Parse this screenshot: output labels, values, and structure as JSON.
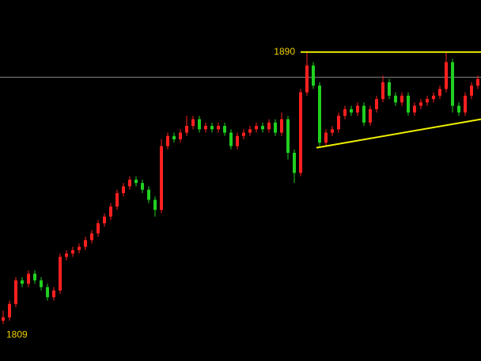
{
  "chart_data": {
    "type": "candlestick",
    "xlim": [
      -0.5,
      75.5
    ],
    "ylim": [
      1798,
      1905.5
    ],
    "up_color": "#ff2020",
    "down_color": "#20d020",
    "open": [
      1810,
      1811,
      1815,
      1822,
      1821,
      1824,
      1822,
      1820,
      1817,
      1819,
      1829,
      1830,
      1831,
      1832,
      1834,
      1836,
      1839,
      1841,
      1844,
      1848,
      1850,
      1852,
      1851,
      1849,
      1846,
      1843,
      1862,
      1865,
      1864,
      1866,
      1868,
      1870,
      1867,
      1868,
      1867,
      1868,
      1866,
      1862,
      1865,
      1866,
      1867,
      1868,
      1867,
      1869,
      1866,
      1870,
      1860,
      1854,
      1878,
      1886,
      1880,
      1863,
      1866,
      1867,
      1871,
      1873,
      1872,
      1874,
      1869,
      1873,
      1876,
      1881,
      1877,
      1875,
      1877,
      1872,
      1874,
      1875,
      1876,
      1877,
      1879,
      1887,
      1874,
      1872,
      1877,
      1880
    ],
    "high": [
      1813,
      1816,
      1823,
      1823,
      1825,
      1825,
      1823,
      1821,
      1820,
      1830,
      1831,
      1832,
      1833,
      1835,
      1837,
      1840,
      1842,
      1845,
      1849,
      1851,
      1853,
      1853,
      1852,
      1850,
      1847,
      1864,
      1866,
      1866,
      1867,
      1871,
      1871,
      1871,
      1869,
      1869,
      1869,
      1869,
      1867,
      1866,
      1867,
      1868,
      1869,
      1869,
      1870,
      1870,
      1872,
      1871,
      1861,
      1879,
      1890,
      1887,
      1881,
      1867,
      1868,
      1872,
      1874,
      1874,
      1875,
      1875,
      1874,
      1877,
      1883,
      1882,
      1878,
      1878,
      1878,
      1875,
      1876,
      1877,
      1878,
      1880,
      1890,
      1888,
      1875,
      1878,
      1881,
      1883
    ],
    "low": [
      1809,
      1810,
      1814,
      1820,
      1820,
      1821,
      1819,
      1816,
      1816,
      1818,
      1828,
      1829,
      1830,
      1831,
      1833,
      1835,
      1838,
      1840,
      1843,
      1847,
      1849,
      1850,
      1848,
      1845,
      1841,
      1842,
      1861,
      1863,
      1863,
      1865,
      1867,
      1866,
      1866,
      1866,
      1866,
      1865,
      1861,
      1861,
      1864,
      1865,
      1866,
      1866,
      1866,
      1865,
      1865,
      1858,
      1851,
      1853,
      1877,
      1879,
      1862,
      1862,
      1865,
      1866,
      1870,
      1871,
      1871,
      1868,
      1868,
      1872,
      1875,
      1876,
      1874,
      1874,
      1871,
      1871,
      1873,
      1874,
      1875,
      1876,
      1878,
      1872,
      1871,
      1871,
      1876,
      1879
    ],
    "close": [
      1811,
      1815,
      1822,
      1821,
      1824,
      1822,
      1820,
      1817,
      1819,
      1829,
      1830,
      1831,
      1832,
      1834,
      1836,
      1839,
      1841,
      1844,
      1848,
      1850,
      1852,
      1851,
      1849,
      1846,
      1843,
      1862,
      1865,
      1864,
      1866,
      1868,
      1870,
      1867,
      1868,
      1867,
      1868,
      1866,
      1862,
      1865,
      1866,
      1867,
      1868,
      1867,
      1869,
      1866,
      1870,
      1860,
      1854,
      1878,
      1886,
      1880,
      1863,
      1866,
      1867,
      1871,
      1873,
      1872,
      1874,
      1869,
      1873,
      1876,
      1881,
      1877,
      1875,
      1877,
      1872,
      1874,
      1875,
      1876,
      1877,
      1879,
      1887,
      1874,
      1872,
      1877,
      1880,
      1882
    ],
    "reference_line": {
      "value": 1882.5,
      "color": "#8a8a8a"
    },
    "trendlines": [
      {
        "x": [
          47,
          75.5
        ],
        "y": [
          1890,
          1890
        ],
        "color": "#f0f000"
      },
      {
        "x": [
          49.5,
          75.5
        ],
        "y": [
          1861.5,
          1870
        ],
        "color": "#f0f000"
      }
    ],
    "annotations": [
      {
        "text": "1890",
        "x": 48,
        "y": 1890,
        "color": "#f0d000"
      },
      {
        "text": "1809",
        "x": 0,
        "y": 1809,
        "color": "#f0d000"
      }
    ]
  }
}
